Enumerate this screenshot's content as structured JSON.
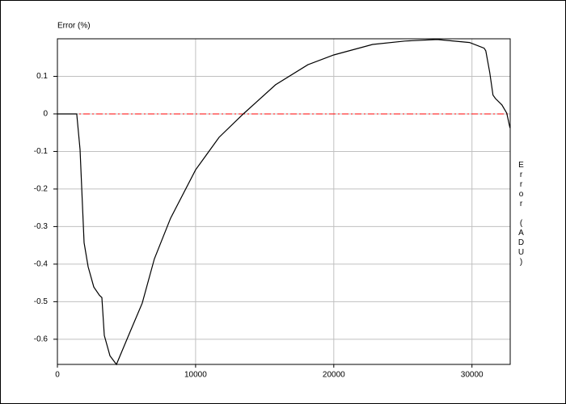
{
  "chart_data": {
    "type": "line",
    "title": "Error (%)",
    "y2_label": "Error (ADU)",
    "x": [
      0,
      1400,
      1637,
      1930,
      2222,
      2632,
      3041,
      3216,
      3392,
      3801,
      4270,
      5263,
      6140,
      7018,
      8187,
      10000,
      11696,
      13450,
      15789,
      18129,
      20000,
      22807,
      25146,
      27485,
      29825,
      30877,
      31000,
      31287,
      31520,
      31696,
      32164,
      32515,
      32750
    ],
    "series": [
      {
        "name": "Error",
        "color": "#000000",
        "values": [
          0,
          0,
          -0.095,
          -0.343,
          -0.407,
          -0.461,
          -0.483,
          -0.489,
          -0.59,
          -0.644,
          -0.667,
          -0.58,
          -0.504,
          -0.386,
          -0.278,
          -0.149,
          -0.0625,
          0,
          0.0776,
          0.131,
          0.157,
          0.185,
          0.194,
          0.198,
          0.19,
          0.175,
          0.168,
          0.11,
          0.05,
          0.041,
          0.024,
          0.002,
          -0.037
        ]
      }
    ],
    "xlim": [
      0,
      32767
    ],
    "xticks": [
      0,
      10000,
      20000,
      30000
    ],
    "ylim": [
      -0.667,
      0.2
    ],
    "yticks": [
      -0.6,
      -0.5,
      -0.4,
      -0.3,
      -0.2,
      -0.1,
      0,
      0.1
    ],
    "grid": true,
    "reference_line": {
      "value": 0,
      "color": "#ff0000"
    }
  }
}
